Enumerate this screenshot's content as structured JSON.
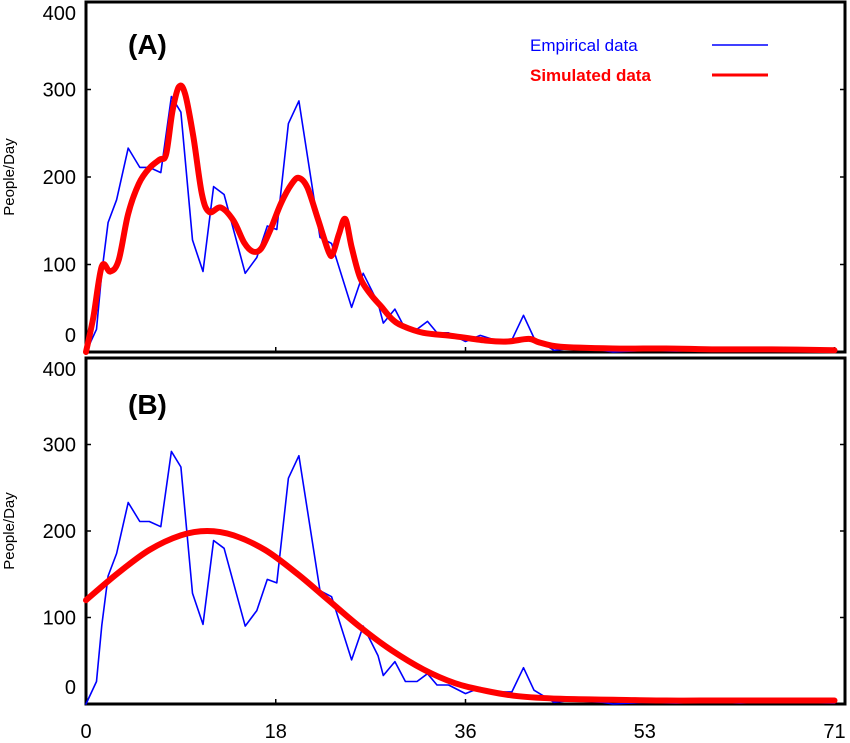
{
  "chart_data": [
    {
      "type": "line",
      "panel_label": "(A)",
      "ylabel": "People/Day",
      "xlabel": "",
      "xlim": [
        0,
        72
      ],
      "ylim": [
        0,
        400
      ],
      "yticks": [
        0,
        100,
        200,
        300,
        400
      ],
      "xticks": [
        0,
        18,
        36,
        53,
        71
      ],
      "grid": false,
      "legend": "top-right",
      "series": [
        {
          "name": "Empirical data",
          "color": "#0000ff",
          "x": [
            0,
            1,
            1.5,
            2.1,
            2.9,
            4.0,
            5.1,
            6.0,
            7.1,
            8.1,
            9.0,
            10.1,
            11.1,
            12.1,
            13.1,
            15.1,
            16.2,
            17.2,
            18.1,
            19.2,
            20.2,
            22.2,
            23.3,
            25.2,
            26.3,
            27.7,
            28.2,
            29.3,
            30.3,
            31.4,
            32.4,
            33.3,
            34.4,
            36,
            37.4,
            38.7,
            40.4,
            41.5,
            42.5,
            44.4,
            46,
            49,
            50,
            53,
            56,
            59,
            62,
            65,
            68,
            71
          ],
          "y": [
            0,
            26,
            91,
            148,
            174,
            233,
            211,
            211,
            205,
            292,
            274,
            128,
            92,
            189,
            180,
            90,
            108,
            144,
            140,
            261,
            287,
            131,
            124,
            51,
            90,
            56,
            33,
            49,
            26,
            26,
            35,
            22,
            22,
            12,
            19,
            14,
            14,
            42,
            16,
            2,
            4,
            2,
            0,
            2,
            1,
            3,
            1,
            3,
            2,
            1
          ]
        },
        {
          "name": "Simulated data",
          "color": "#ff0000",
          "x": [
            0,
            0.7,
            1.5,
            2.3,
            3.1,
            4,
            5,
            6,
            7,
            7.6,
            8.2,
            8.8,
            9.4,
            10.2,
            11,
            11.7,
            12.8,
            14,
            15,
            15.8,
            16.6,
            17.5,
            18.5,
            19.5,
            20.2,
            21,
            22,
            23,
            23.4,
            24,
            24.6,
            25.2,
            26,
            27,
            28,
            29,
            30,
            32,
            35,
            38,
            40,
            42,
            43,
            45,
            50,
            55,
            60,
            65,
            71
          ],
          "y": [
            0,
            40,
            98,
            92,
            105,
            158,
            192,
            210,
            220,
            226,
            275,
            303,
            295,
            245,
            180,
            160,
            165,
            150,
            125,
            115,
            118,
            140,
            170,
            192,
            199,
            188,
            152,
            115,
            112,
            135,
            152,
            120,
            85,
            66,
            52,
            38,
            30,
            22,
            18,
            13,
            12,
            15,
            11,
            6,
            4,
            4,
            3,
            3,
            2
          ]
        }
      ]
    },
    {
      "type": "line",
      "panel_label": "(B)",
      "ylabel": "People/Day",
      "xlabel": "",
      "xlim": [
        0,
        72
      ],
      "ylim": [
        0,
        400
      ],
      "yticks": [
        0,
        100,
        200,
        300,
        400
      ],
      "xticks": [
        0,
        18,
        36,
        53,
        71
      ],
      "grid": false,
      "series": [
        {
          "name": "Empirical data",
          "color": "#0000ff",
          "x": [
            0,
            1,
            1.5,
            2.1,
            2.9,
            4.0,
            5.1,
            6.0,
            7.1,
            8.1,
            9.0,
            10.1,
            11.1,
            12.1,
            13.1,
            15.1,
            16.2,
            17.2,
            18.1,
            19.2,
            20.2,
            22.2,
            23.3,
            25.2,
            26.3,
            27.7,
            28.2,
            29.3,
            30.3,
            31.4,
            32.4,
            33.3,
            34.4,
            36,
            37.4,
            38.7,
            40.4,
            41.5,
            42.5,
            44.4,
            46,
            49,
            50,
            53,
            56,
            59,
            62,
            65,
            68,
            71
          ],
          "y": [
            0,
            26,
            91,
            148,
            174,
            233,
            211,
            211,
            205,
            292,
            274,
            128,
            92,
            189,
            180,
            90,
            108,
            144,
            140,
            261,
            287,
            131,
            124,
            51,
            90,
            56,
            33,
            49,
            26,
            26,
            35,
            22,
            22,
            12,
            19,
            14,
            14,
            42,
            16,
            2,
            4,
            2,
            0,
            2,
            1,
            3,
            1,
            3,
            2,
            1
          ]
        },
        {
          "name": "Simulated data",
          "color": "#ff0000",
          "x": [
            0,
            3,
            6,
            9,
            11.5,
            14,
            17,
            20,
            23,
            26,
            29,
            32,
            35,
            38,
            41,
            45,
            50,
            55,
            60,
            65,
            71
          ],
          "y": [
            120,
            151,
            178,
            195,
            200,
            195,
            178,
            151,
            120,
            89,
            62,
            40,
            24,
            15,
            9,
            6,
            5,
            4,
            4,
            4,
            4
          ]
        }
      ]
    }
  ],
  "legend": {
    "empirical_label": "Empirical data",
    "simulated_label": "Simulated data"
  }
}
